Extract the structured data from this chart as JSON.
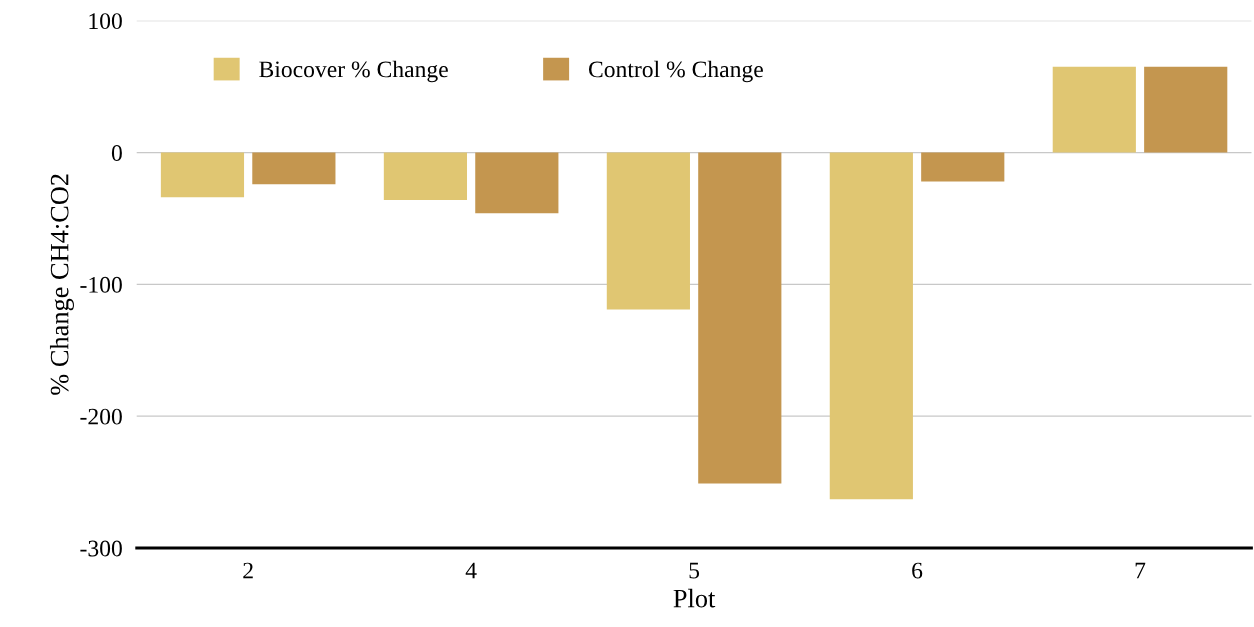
{
  "chart_data": {
    "type": "bar",
    "xlabel": "Plot",
    "ylabel": "% Change CH4:CO2",
    "categories": [
      "2",
      "4",
      "5",
      "6",
      "7"
    ],
    "series": [
      {
        "name": "Biocover % Change",
        "color": "#e0c672",
        "values": [
          -34,
          -36,
          -119,
          -263,
          65
        ]
      },
      {
        "name": "Control % Change",
        "color": "#c4964f",
        "values": [
          -24,
          -46,
          -251,
          -22,
          65
        ]
      }
    ],
    "ylim": [
      -300,
      100
    ],
    "yticks": [
      -300,
      -200,
      -100,
      0,
      100
    ],
    "grid": "y",
    "legend": "top left"
  }
}
